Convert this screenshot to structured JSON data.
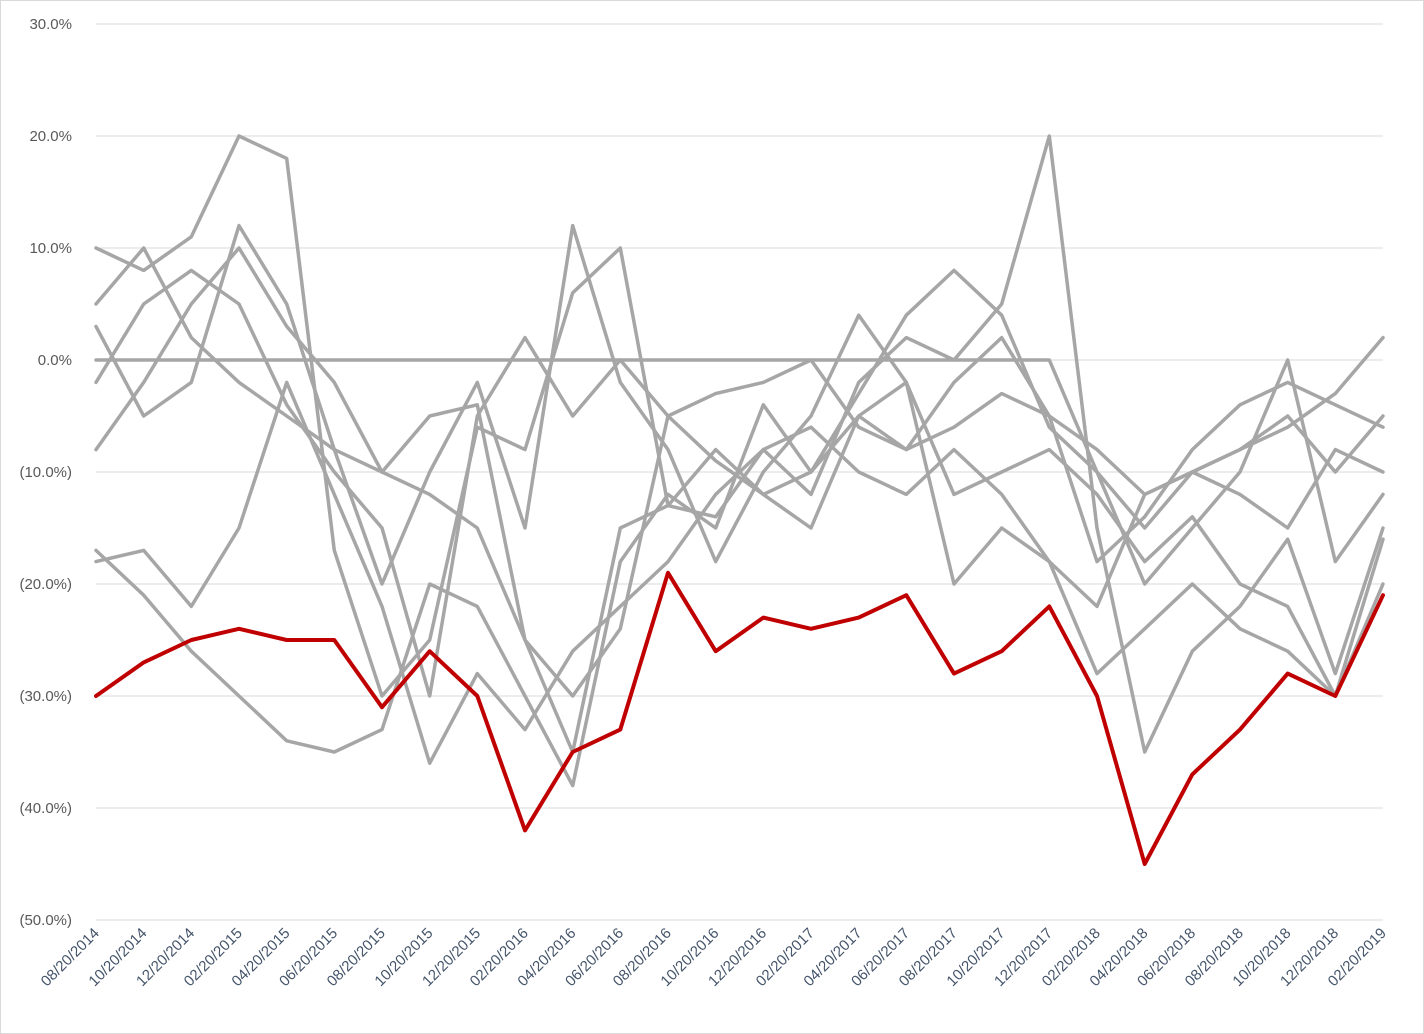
{
  "chart_data": {
    "type": "line",
    "title": "",
    "xlabel": "",
    "ylabel": "",
    "ylim": [
      -50,
      30
    ],
    "y_ticks": [
      {
        "value": 30,
        "label": "30.0%"
      },
      {
        "value": 20,
        "label": "20.0%"
      },
      {
        "value": 10,
        "label": "10.0%"
      },
      {
        "value": 0,
        "label": "0.0%"
      },
      {
        "value": -10,
        "label": "(10.0%)"
      },
      {
        "value": -20,
        "label": "(20.0%)"
      },
      {
        "value": -30,
        "label": "(30.0%)"
      },
      {
        "value": -40,
        "label": "(40.0%)"
      },
      {
        "value": -50,
        "label": "(50.0%)"
      }
    ],
    "x_ticks": [
      "08/20/2014",
      "10/20/2014",
      "12/20/2014",
      "02/20/2015",
      "04/20/2015",
      "06/20/2015",
      "08/20/2015",
      "10/20/2015",
      "12/20/2015",
      "02/20/2016",
      "04/20/2016",
      "06/20/2016",
      "08/20/2016",
      "10/20/2016",
      "12/20/2016",
      "02/20/2017",
      "04/20/2017",
      "06/20/2017",
      "08/20/2017",
      "10/20/2017",
      "12/20/2017",
      "02/20/2018",
      "04/20/2018",
      "06/20/2018",
      "08/20/2018",
      "10/20/2018",
      "12/20/2018",
      "02/20/2019"
    ],
    "x": [
      "08/20/2014",
      "10/20/2014",
      "12/20/2014",
      "02/20/2015",
      "04/20/2015",
      "06/20/2015",
      "08/20/2015",
      "10/20/2015",
      "12/20/2015",
      "02/20/2016",
      "04/20/2016",
      "06/20/2016",
      "08/20/2016",
      "10/20/2016",
      "12/20/2016",
      "02/20/2017",
      "04/20/2017",
      "06/20/2017",
      "08/20/2017",
      "10/20/2017",
      "12/20/2017",
      "02/20/2018",
      "04/20/2018",
      "06/20/2018",
      "08/20/2018",
      "10/20/2018",
      "12/20/2018",
      "02/20/2019"
    ],
    "grid": true,
    "legend": "none",
    "colors": {
      "highlight": "#c00000",
      "peers": "#a6a6a6",
      "grid": "#d9d9d9"
    },
    "series": [
      {
        "highlight": true,
        "values": [
          -30,
          -27,
          -25,
          -24,
          -25,
          -25,
          -31,
          -26,
          -30,
          -42,
          -35,
          -33,
          -19,
          -26,
          -23,
          -24,
          -23,
          -21,
          -28,
          -26,
          -22,
          -30,
          -45,
          -37,
          -33,
          -28,
          -30,
          -21
        ]
      },
      {
        "highlight": false,
        "values": [
          10,
          8,
          11,
          20,
          18,
          -17,
          -30,
          -25,
          -6,
          -8,
          6,
          10,
          -13,
          -14,
          -8,
          -12,
          -2,
          2,
          0,
          5,
          20,
          -15,
          -35,
          -26,
          -22,
          -16,
          -28,
          -15
        ]
      },
      {
        "highlight": false,
        "values": [
          5,
          10,
          2,
          -2,
          -5,
          -8,
          -10,
          -12,
          -15,
          -25,
          -35,
          -15,
          -13,
          -8,
          -12,
          -15,
          -5,
          -2,
          -20,
          -15,
          -18,
          -22,
          -12,
          -10,
          -8,
          -6,
          -3,
          2
        ]
      },
      {
        "highlight": false,
        "values": [
          -8,
          -2,
          5,
          10,
          3,
          -2,
          -10,
          -5,
          -4,
          -25,
          -30,
          -24,
          -5,
          -9,
          -12,
          -10,
          -3,
          4,
          8,
          4,
          -6,
          -10,
          -15,
          -10,
          -8,
          -5,
          -10,
          -5
        ]
      },
      {
        "highlight": false,
        "values": [
          -17,
          -21,
          -26,
          -30,
          -34,
          -35,
          -33,
          -20,
          -22,
          -30,
          -38,
          -18,
          -12,
          -15,
          -4,
          -10,
          -5,
          -8,
          -2,
          2,
          -5,
          -8,
          -12,
          -10,
          -12,
          -15,
          -8,
          -10
        ]
      },
      {
        "highlight": false,
        "values": [
          0,
          0,
          0,
          0,
          0,
          0,
          0,
          0,
          0,
          0,
          0,
          0,
          0,
          0,
          0,
          0,
          0,
          0,
          0,
          0,
          0,
          -10,
          -20,
          -15,
          -10,
          0,
          -18,
          -12
        ]
      },
      {
        "highlight": false,
        "values": [
          3,
          -5,
          -2,
          12,
          5,
          -8,
          -20,
          -10,
          -2,
          -15,
          12,
          -2,
          -8,
          -18,
          -10,
          -5,
          4,
          -2,
          -12,
          -10,
          -8,
          -12,
          -18,
          -14,
          -20,
          -22,
          -30,
          -16
        ]
      },
      {
        "highlight": false,
        "values": [
          -2,
          5,
          8,
          5,
          -4,
          -10,
          -15,
          -30,
          -5,
          2,
          -5,
          0,
          -5,
          -3,
          -2,
          0,
          -6,
          -8,
          -6,
          -3,
          -5,
          -18,
          -14,
          -8,
          -4,
          -2,
          -4,
          -6
        ]
      },
      {
        "highlight": false,
        "values": [
          -18,
          -17,
          -22,
          -15,
          -2,
          -12,
          -22,
          -36,
          -28,
          -33,
          -26,
          -22,
          -18,
          -12,
          -8,
          -6,
          -10,
          -12,
          -8,
          -12,
          -18,
          -28,
          -24,
          -20,
          -24,
          -26,
          -30,
          -20
        ]
      }
    ]
  }
}
